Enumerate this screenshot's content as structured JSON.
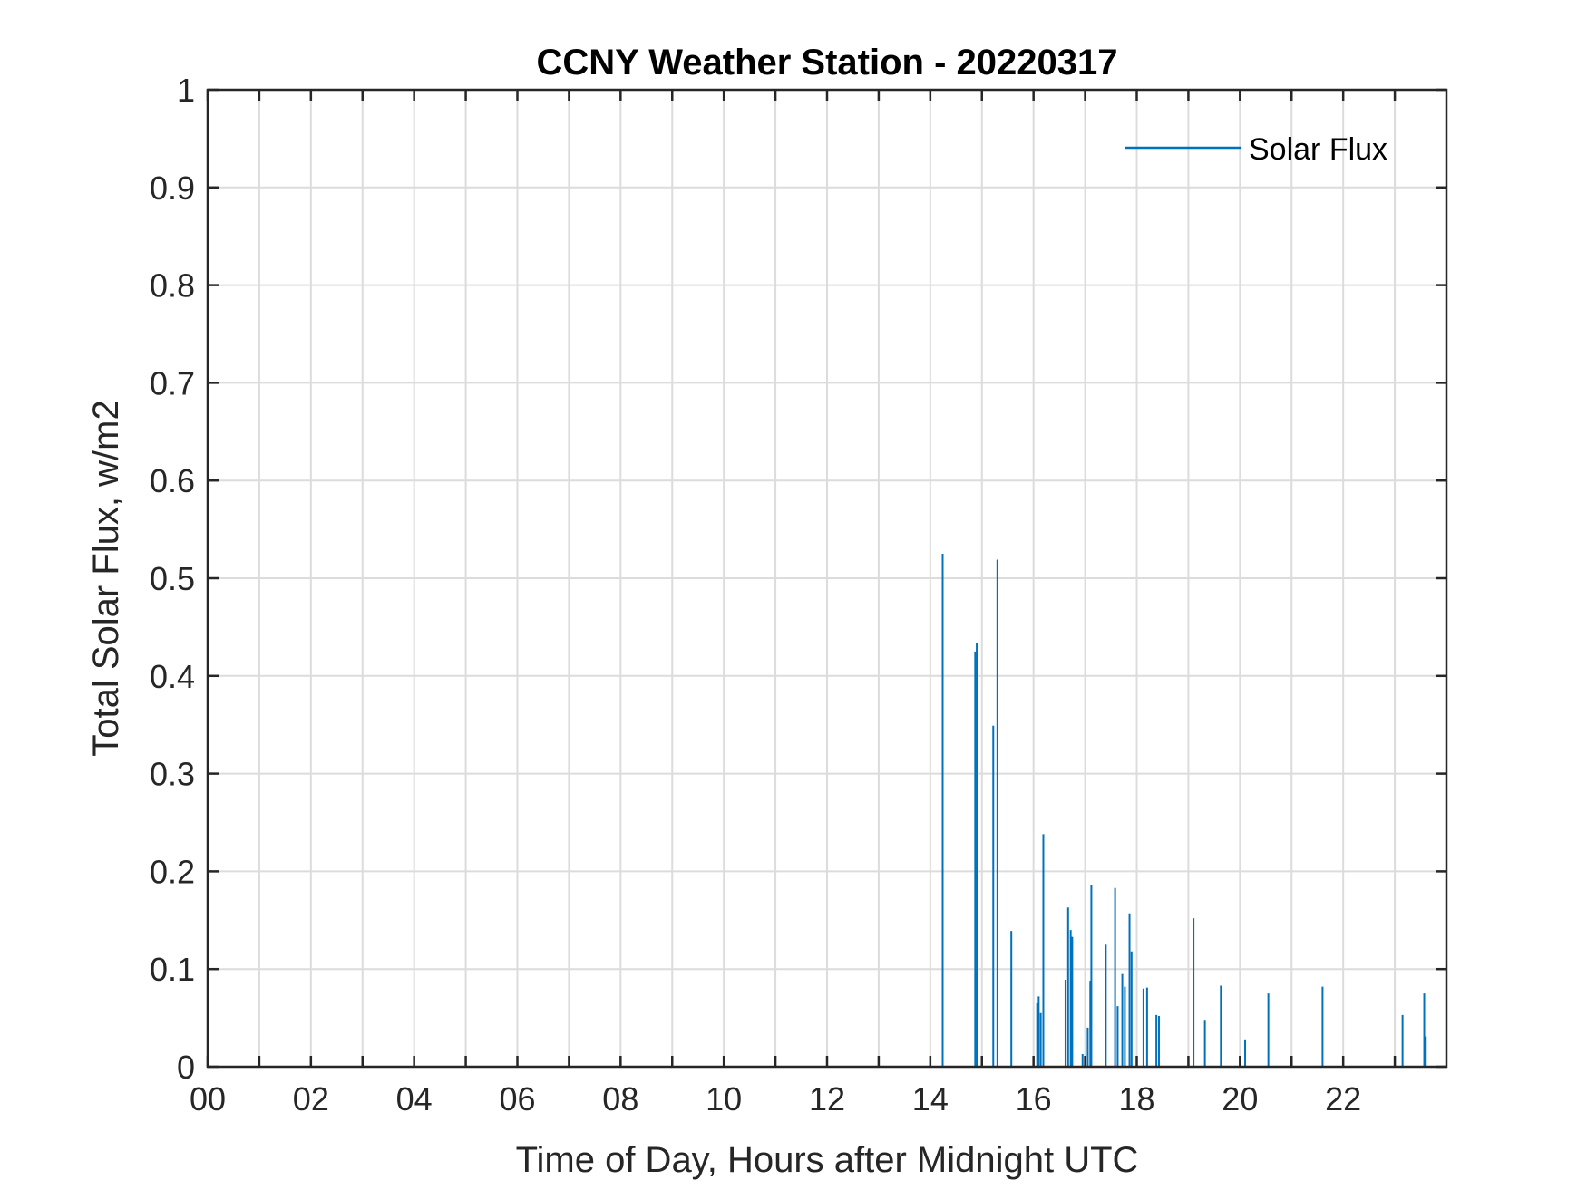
{
  "chart_data": {
    "type": "line",
    "title": "CCNY Weather Station - 20220317",
    "xlabel": "Time of Day, Hours after Midnight UTC",
    "ylabel": "Total Solar Flux, w/m2",
    "xlim": [
      0,
      24
    ],
    "ylim": [
      0,
      1
    ],
    "x_ticks": [
      0,
      2,
      4,
      6,
      8,
      10,
      12,
      14,
      16,
      18,
      20,
      22
    ],
    "x_tick_labels": [
      "00",
      "02",
      "04",
      "06",
      "08",
      "10",
      "12",
      "14",
      "16",
      "18",
      "20",
      "22"
    ],
    "y_ticks": [
      0,
      0.1,
      0.2,
      0.3,
      0.4,
      0.5,
      0.6,
      0.7,
      0.8,
      0.9,
      1
    ],
    "y_tick_labels": [
      "0",
      "0.1",
      "0.2",
      "0.3",
      "0.4",
      "0.5",
      "0.6",
      "0.7",
      "0.8",
      "0.9",
      "1"
    ],
    "grid": true,
    "legend_position": "top-right",
    "series": [
      {
        "name": "Solar Flux",
        "color": "#0072bd",
        "spikes": [
          [
            14.24,
            0.525
          ],
          [
            14.87,
            0.425
          ],
          [
            14.9,
            0.434
          ],
          [
            15.22,
            0.349
          ],
          [
            15.3,
            0.519
          ],
          [
            15.57,
            0.139
          ],
          [
            16.07,
            0.065
          ],
          [
            16.1,
            0.072
          ],
          [
            16.14,
            0.055
          ],
          [
            16.19,
            0.238
          ],
          [
            16.62,
            0.089
          ],
          [
            16.67,
            0.163
          ],
          [
            16.72,
            0.14
          ],
          [
            16.75,
            0.133
          ],
          [
            16.95,
            0.013
          ],
          [
            17.05,
            0.04
          ],
          [
            17.1,
            0.088
          ],
          [
            17.12,
            0.186
          ],
          [
            17.4,
            0.125
          ],
          [
            17.58,
            0.183
          ],
          [
            17.63,
            0.062
          ],
          [
            17.72,
            0.095
          ],
          [
            17.77,
            0.082
          ],
          [
            17.86,
            0.157
          ],
          [
            17.9,
            0.118
          ],
          [
            18.13,
            0.08
          ],
          [
            18.2,
            0.081
          ],
          [
            18.38,
            0.053
          ],
          [
            18.43,
            0.052
          ],
          [
            19.1,
            0.152
          ],
          [
            19.32,
            0.048
          ],
          [
            19.63,
            0.083
          ],
          [
            20.1,
            0.028
          ],
          [
            20.55,
            0.075
          ],
          [
            21.6,
            0.082
          ],
          [
            23.15,
            0.053
          ],
          [
            23.57,
            0.075
          ],
          [
            23.6,
            0.031
          ]
        ]
      }
    ]
  }
}
